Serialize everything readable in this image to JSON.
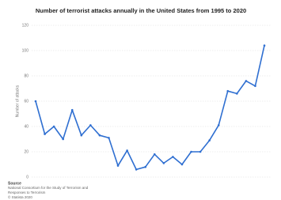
{
  "chart_data": {
    "type": "line",
    "title": "Number of terrorist attacks annually in the United States from 1995 to 2020",
    "y_label": "Number of attacks",
    "values": [
      60,
      34,
      40,
      30,
      53,
      33,
      41,
      33,
      31,
      9,
      21,
      6,
      8,
      18,
      11,
      16,
      10,
      20,
      20,
      29,
      41,
      68,
      66,
      76,
      72,
      104
    ],
    "color": "#2f6fd1",
    "ylim": [
      0,
      120
    ],
    "yticks": [
      0,
      20,
      40,
      60,
      80,
      100,
      120
    ],
    "grid": true,
    "source": {
      "heading": "Source",
      "lines": [
        "National Consortium for the Study of Terrorism and",
        "Responses to Terrorism",
        "© Statista 2020"
      ]
    }
  }
}
